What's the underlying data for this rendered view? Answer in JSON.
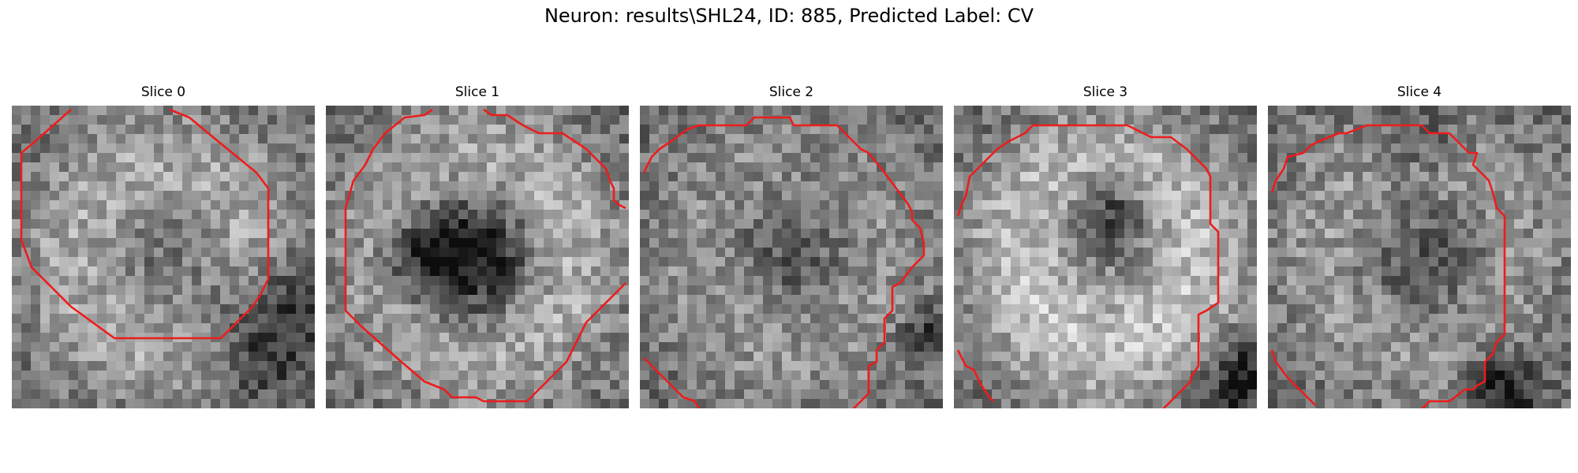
{
  "figure": {
    "title": "Neuron: results\\SHL24, ID: 885, Predicted Label: CV"
  },
  "panels": [
    {
      "title": "Slice 0",
      "contour_color": "#ee1c1c"
    },
    {
      "title": "Slice 1",
      "contour_color": "#ee1c1c"
    },
    {
      "title": "Slice 2",
      "contour_color": "#ee1c1c"
    },
    {
      "title": "Slice 3",
      "contour_color": "#ee1c1c"
    },
    {
      "title": "Slice 4",
      "contour_color": "#ee1c1c"
    }
  ]
}
